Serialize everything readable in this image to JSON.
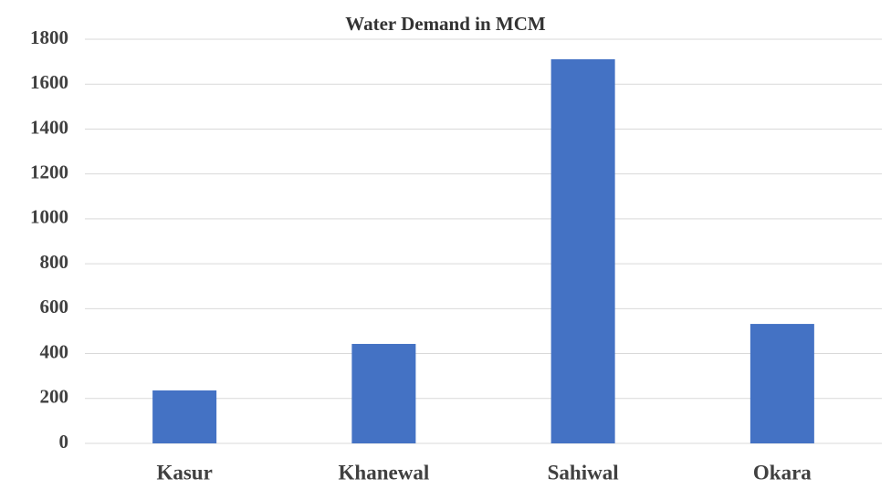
{
  "chart_data": {
    "type": "bar",
    "title": "Water Demand in MCM",
    "categories": [
      "Kasur",
      "Khanewal",
      "Sahiwal",
      "Okara"
    ],
    "values": [
      236,
      443,
      1711,
      532
    ],
    "color": "#4472c4",
    "ylim": [
      0,
      1800
    ],
    "yticks": [
      0,
      200,
      400,
      600,
      800,
      1000,
      1200,
      1400,
      1600,
      1800
    ],
    "grid": true
  }
}
